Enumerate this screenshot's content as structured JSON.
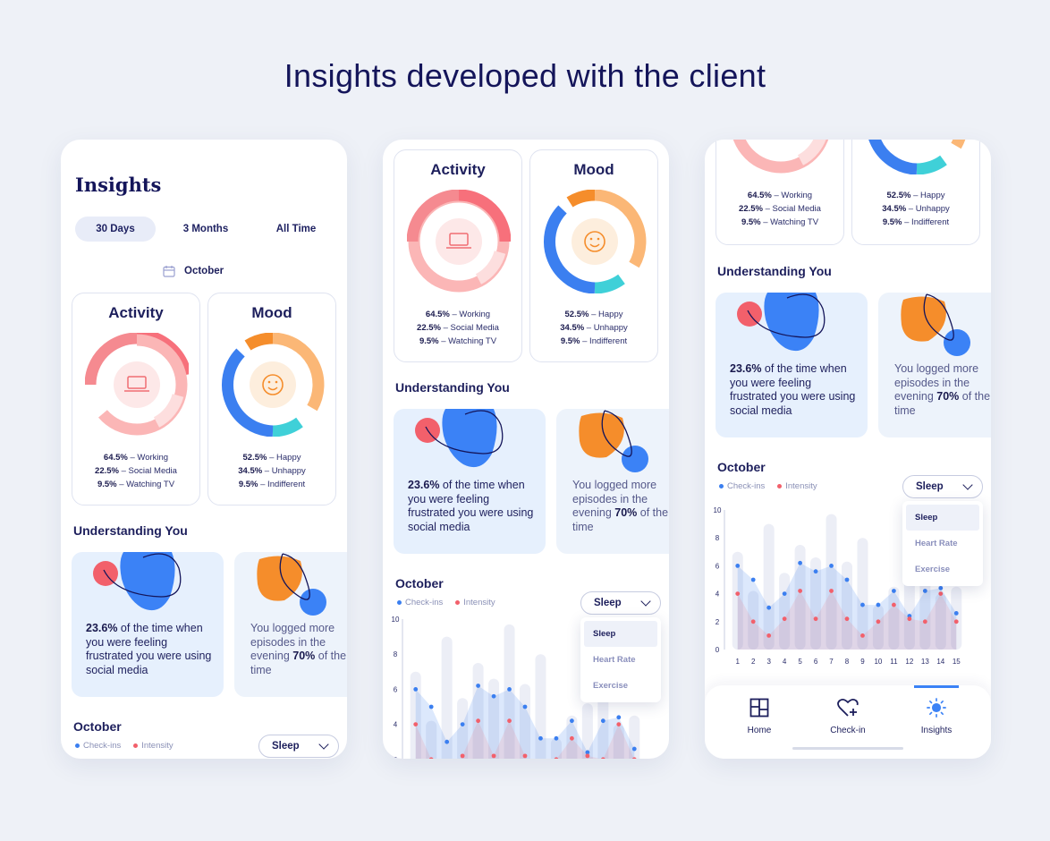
{
  "headline": "Insights developed with the client",
  "insights": {
    "title": "Insights",
    "tabs": [
      "30 Days",
      "3 Months",
      "All Time"
    ],
    "month": "October"
  },
  "activity": {
    "title": "Activity",
    "icon": "laptop-icon",
    "items": [
      {
        "pct": "64.5%",
        "label": " – Working"
      },
      {
        "pct": "22.5%",
        "label": " – Social Media"
      },
      {
        "pct": "9.5%",
        "label": " – Watching TV"
      }
    ],
    "colors": [
      "#f7707b",
      "#fbbcbc",
      "#fde4e4"
    ]
  },
  "mood": {
    "title": "Mood",
    "icon": "smiley-icon",
    "items": [
      {
        "pct": "52.5%",
        "label": " – Happy"
      },
      {
        "pct": "34.5%",
        "label": " – Unhappy"
      },
      {
        "pct": "9.5%",
        "label": " – Indifferent"
      }
    ],
    "colors": [
      "#f58d2b",
      "#3b7ff0",
      "#3fd0d8"
    ]
  },
  "understanding": {
    "title": "Understanding You",
    "card1": {
      "pct": "23.6%",
      "text": " of the time when you were feeling frustrated you were using social media"
    },
    "card2": {
      "pre": "You logged more episodes in the evening ",
      "pct": "70%",
      "post": " of the time"
    }
  },
  "chart": {
    "title": "October",
    "legend": [
      "Check-ins",
      "Intensity"
    ],
    "select_value": "Sleep",
    "options": [
      "Sleep",
      "Heart Rate",
      "Exercise"
    ],
    "colors": {
      "checkins": "#3b7ff0",
      "intensity": "#f2606b",
      "bars": "#eceef6"
    }
  },
  "chart_data": {
    "type": "bar",
    "x": [
      "1",
      "2",
      "3",
      "4",
      "5",
      "6",
      "7",
      "8",
      "9",
      "10",
      "11",
      "12",
      "13",
      "14",
      "15"
    ],
    "ylim": [
      0,
      10
    ],
    "yticks": [
      "0",
      "2",
      "4",
      "6",
      "8",
      "10"
    ],
    "bars": [
      7,
      4.2,
      9,
      5.5,
      7.5,
      6.6,
      9.7,
      6.3,
      8,
      3.2,
      4.5,
      5.2,
      7.3,
      4,
      4.5
    ],
    "series": [
      {
        "name": "Check-ins",
        "values": [
          6,
          5,
          3,
          4,
          6.2,
          5.6,
          6,
          5,
          3.2,
          3.2,
          4.2,
          2.4,
          4.2,
          4.4,
          2.6
        ]
      },
      {
        "name": "Intensity",
        "values": [
          4,
          2,
          1,
          2.2,
          4.2,
          2.2,
          4.2,
          2.2,
          1,
          2,
          3.2,
          2.2,
          2,
          4,
          2
        ]
      }
    ]
  },
  "nav": {
    "items": [
      {
        "label": "Home",
        "icon": "home-grid-icon"
      },
      {
        "label": "Check-in",
        "icon": "heart-plus-icon"
      },
      {
        "label": "Insights",
        "icon": "sun-icon"
      }
    ]
  }
}
